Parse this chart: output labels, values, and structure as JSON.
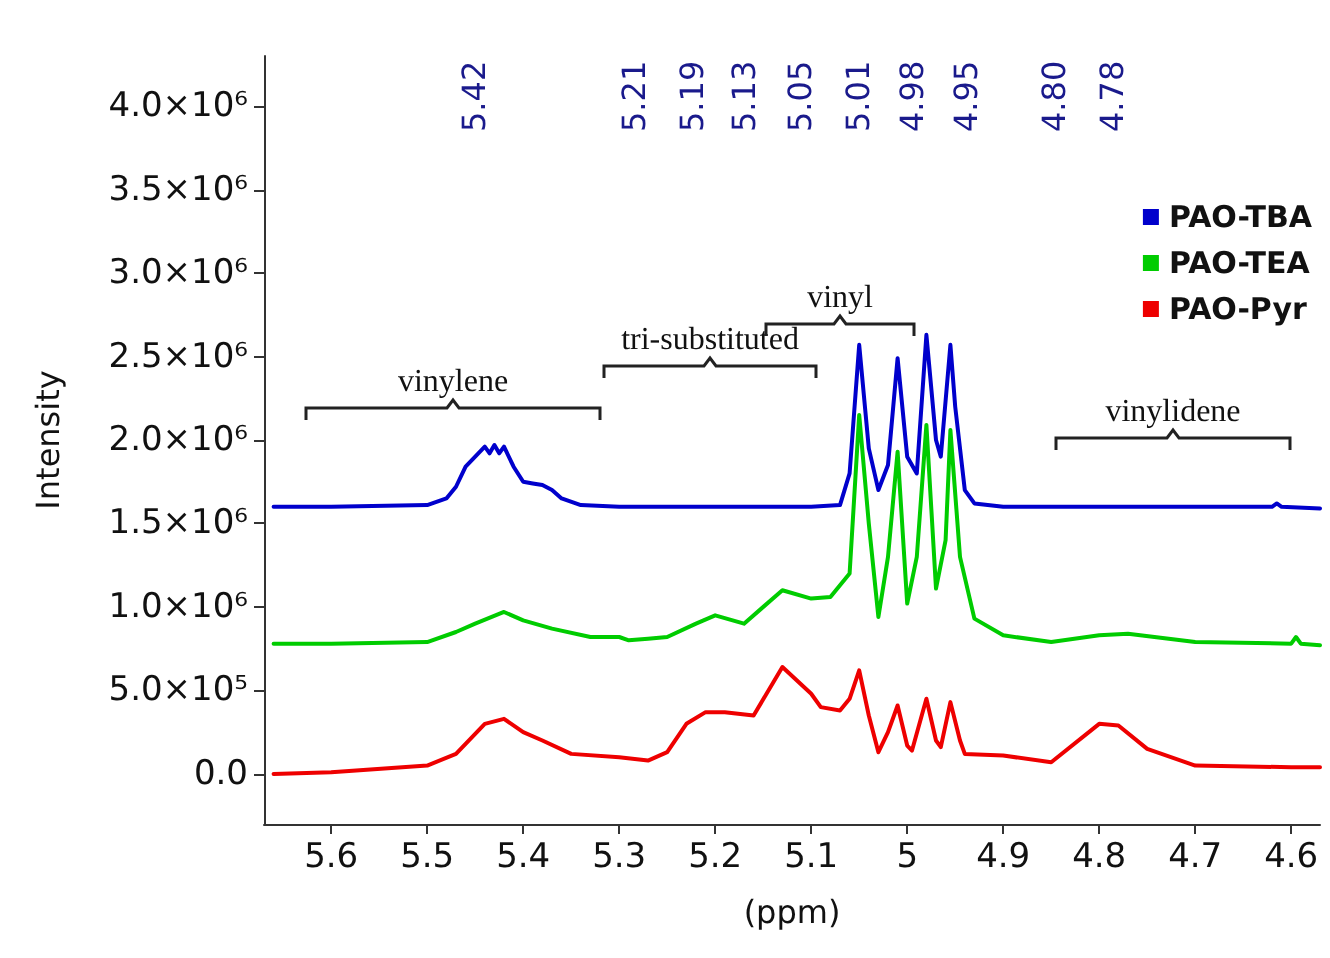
{
  "chart_data": {
    "type": "line",
    "xlabel": "(ppm)",
    "ylabel": "Intensity",
    "xlim": [
      5.67,
      4.57
    ],
    "xticks": [
      5.6,
      5.5,
      5.4,
      5.3,
      5.2,
      5.1,
      5.0,
      4.9,
      4.8,
      4.7,
      4.6
    ],
    "ylim": [
      -300000,
      4300000
    ],
    "yticks": [
      {
        "value": 0,
        "label": "0.0"
      },
      {
        "value": 500000,
        "label": "5.0×10⁵"
      },
      {
        "value": 1000000,
        "label": "1.0×10⁶"
      },
      {
        "value": 1500000,
        "label": "1.5×10⁶"
      },
      {
        "value": 2000000,
        "label": "2.0×10⁶"
      },
      {
        "value": 2500000,
        "label": "2.5×10⁶"
      },
      {
        "value": 3000000,
        "label": "3.0×10⁶"
      },
      {
        "value": 3500000,
        "label": "3.5×10⁶"
      },
      {
        "value": 4000000,
        "label": "4.0×10⁶"
      }
    ],
    "grid": false,
    "legend": "top right",
    "marker": "none",
    "line_style": "solid",
    "series": [
      {
        "name": "PAO-TBA",
        "color": "#0000cc",
        "x": [
          5.66,
          5.6,
          5.5,
          5.48,
          5.47,
          5.46,
          5.45,
          5.44,
          5.435,
          5.43,
          5.425,
          5.42,
          5.41,
          5.4,
          5.39,
          5.38,
          5.37,
          5.36,
          5.34,
          5.3,
          5.1,
          5.07,
          5.06,
          5.05,
          5.04,
          5.03,
          5.02,
          5.01,
          5.0,
          4.99,
          4.98,
          4.97,
          4.965,
          4.955,
          4.95,
          4.94,
          4.93,
          4.9,
          4.62,
          4.615,
          4.61,
          4.57
        ],
        "values": [
          1600000,
          1600000,
          1610000,
          1650000,
          1720000,
          1840000,
          1900000,
          1960000,
          1920000,
          1970000,
          1920000,
          1960000,
          1840000,
          1750000,
          1740000,
          1730000,
          1700000,
          1650000,
          1610000,
          1600000,
          1600000,
          1610000,
          1800000,
          2570000,
          1950000,
          1700000,
          1850000,
          2490000,
          1900000,
          1800000,
          2630000,
          2000000,
          1900000,
          2570000,
          2200000,
          1700000,
          1620000,
          1600000,
          1600000,
          1620000,
          1600000,
          1590000
        ]
      },
      {
        "name": "PAO-TEA",
        "color": "#00cc00",
        "x": [
          5.66,
          5.6,
          5.5,
          5.47,
          5.45,
          5.42,
          5.4,
          5.37,
          5.33,
          5.3,
          5.29,
          5.27,
          5.25,
          5.22,
          5.2,
          5.17,
          5.13,
          5.1,
          5.08,
          5.06,
          5.05,
          5.04,
          5.03,
          5.02,
          5.01,
          5.0,
          4.99,
          4.98,
          4.97,
          4.96,
          4.955,
          4.945,
          4.93,
          4.9,
          4.85,
          4.8,
          4.77,
          4.7,
          4.6,
          4.595,
          4.59,
          4.57
        ],
        "values": [
          780000,
          780000,
          790000,
          850000,
          900000,
          970000,
          920000,
          870000,
          820000,
          820000,
          800000,
          810000,
          820000,
          900000,
          950000,
          900000,
          1100000,
          1050000,
          1060000,
          1200000,
          2150000,
          1500000,
          940000,
          1300000,
          1930000,
          1020000,
          1300000,
          2090000,
          1110000,
          1400000,
          2060000,
          1300000,
          930000,
          830000,
          790000,
          830000,
          840000,
          790000,
          780000,
          820000,
          780000,
          770000
        ]
      },
      {
        "name": "PAO-Pyr",
        "color": "#ee0000",
        "x": [
          5.66,
          5.6,
          5.5,
          5.47,
          5.44,
          5.42,
          5.4,
          5.38,
          5.35,
          5.3,
          5.27,
          5.25,
          5.23,
          5.21,
          5.19,
          5.16,
          5.13,
          5.1,
          5.09,
          5.07,
          5.06,
          5.05,
          5.04,
          5.03,
          5.02,
          5.01,
          5.0,
          4.995,
          4.98,
          4.97,
          4.965,
          4.955,
          4.945,
          4.94,
          4.9,
          4.85,
          4.8,
          4.78,
          4.75,
          4.7,
          4.6,
          4.57
        ],
        "values": [
          0,
          10000,
          50000,
          120000,
          300000,
          330000,
          250000,
          200000,
          120000,
          100000,
          80000,
          130000,
          300000,
          370000,
          370000,
          350000,
          640000,
          480000,
          400000,
          380000,
          450000,
          620000,
          350000,
          130000,
          250000,
          410000,
          170000,
          140000,
          450000,
          200000,
          160000,
          430000,
          200000,
          120000,
          110000,
          70000,
          300000,
          290000,
          150000,
          50000,
          40000,
          40000
        ]
      }
    ],
    "annotations": [
      "vinylene",
      "tri-substituted",
      "vinyl",
      "vinylidene",
      "5.42",
      "5.21",
      "5.19",
      "5.13",
      "5.05",
      "5.01",
      "4.98",
      "4.95",
      "4.80",
      "4.78"
    ]
  }
}
